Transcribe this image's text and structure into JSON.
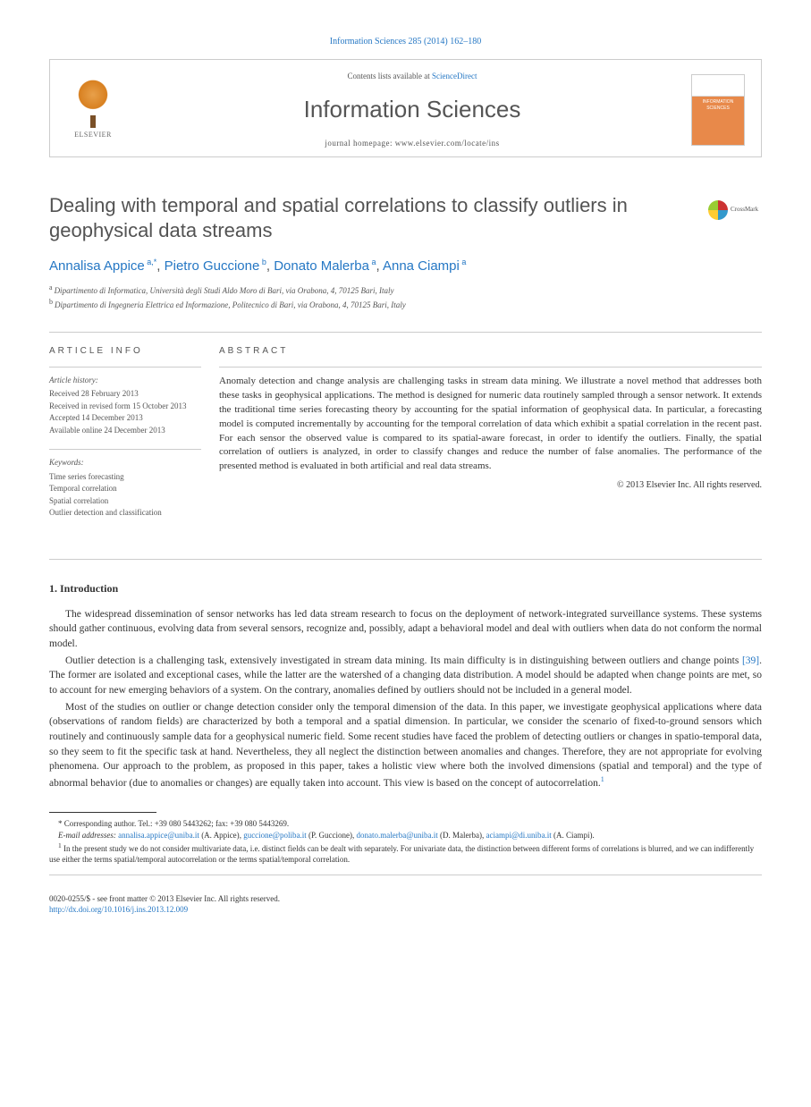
{
  "citation": "Information Sciences 285 (2014) 162–180",
  "header": {
    "contents_prefix": "Contents lists available at ",
    "contents_link": "ScienceDirect",
    "journal": "Information Sciences",
    "homepage_prefix": "journal homepage: ",
    "homepage_url": "www.elsevier.com/locate/ins",
    "publisher": "ELSEVIER",
    "cover_title": "INFORMATION SCIENCES"
  },
  "crossmark": "CrossMark",
  "title": "Dealing with temporal and spatial correlations to classify outliers in geophysical data streams",
  "authors": [
    {
      "name": "Annalisa Appice",
      "affil": "a,",
      "corr": "*"
    },
    {
      "name": "Pietro Guccione",
      "affil": "b",
      "corr": ""
    },
    {
      "name": "Donato Malerba",
      "affil": "a",
      "corr": ""
    },
    {
      "name": "Anna Ciampi",
      "affil": "a",
      "corr": ""
    }
  ],
  "affiliations": [
    {
      "marker": "a",
      "text": "Dipartimento di Informatica, Università degli Studi Aldo Moro di Bari, via Orabona, 4, 70125 Bari, Italy"
    },
    {
      "marker": "b",
      "text": "Dipartimento di Ingegneria Elettrica ed Informazione, Politecnico di Bari, via Orabona, 4, 70125 Bari, Italy"
    }
  ],
  "article_info": {
    "heading": "ARTICLE INFO",
    "history_label": "Article history:",
    "history": [
      "Received 28 February 2013",
      "Received in revised form 15 October 2013",
      "Accepted 14 December 2013",
      "Available online 24 December 2013"
    ],
    "keywords_label": "Keywords:",
    "keywords": [
      "Time series forecasting",
      "Temporal correlation",
      "Spatial correlation",
      "Outlier detection and classification"
    ]
  },
  "abstract": {
    "heading": "ABSTRACT",
    "text": "Anomaly detection and change analysis are challenging tasks in stream data mining. We illustrate a novel method that addresses both these tasks in geophysical applications. The method is designed for numeric data routinely sampled through a sensor network. It extends the traditional time series forecasting theory by accounting for the spatial information of geophysical data. In particular, a forecasting model is computed incrementally by accounting for the temporal correlation of data which exhibit a spatial correlation in the recent past. For each sensor the observed value is compared to its spatial-aware forecast, in order to identify the outliers. Finally, the spatial correlation of outliers is analyzed, in order to classify changes and reduce the number of false anomalies. The performance of the presented method is evaluated in both artificial and real data streams.",
    "copyright": "© 2013 Elsevier Inc. All rights reserved."
  },
  "intro": {
    "heading": "1. Introduction",
    "paragraphs": [
      "The widespread dissemination of sensor networks has led data stream research to focus on the deployment of network-integrated surveillance systems. These systems should gather continuous, evolving data from several sensors, recognize and, possibly, adapt a behavioral model and deal with outliers when data do not conform the normal model.",
      "Outlier detection is a challenging task, extensively investigated in stream data mining. Its main difficulty is in distinguishing between outliers and change points [39]. The former are isolated and exceptional cases, while the latter are the watershed of a changing data distribution. A model should be adapted when change points are met, so to account for new emerging behaviors of a system. On the contrary, anomalies defined by outliers should not be included in a general model.",
      "Most of the studies on outlier or change detection consider only the temporal dimension of the data. In this paper, we investigate geophysical applications where data (observations of random fields) are characterized by both a temporal and a spatial dimension. In particular, we consider the scenario of fixed-to-ground sensors which routinely and continuously sample data for a geophysical numeric field. Some recent studies have faced the problem of detecting outliers or changes in spatio-temporal data, so they seem to fit the specific task at hand. Nevertheless, they all neglect the distinction between anomalies and changes. Therefore, they are not appropriate for evolving phenomena. Our approach to the problem, as proposed in this paper, takes a holistic view where both the involved dimensions (spatial and temporal) and the type of abnormal behavior (due to anomalies or changes) are equally taken into account. This view is based on the concept of autocorrelation.1"
    ],
    "ref39": "[39]"
  },
  "footnotes": {
    "corresponding": "* Corresponding author. Tel.: +39 080 5443262; fax: +39 080 5443269.",
    "emails_label": "E-mail addresses: ",
    "emails": [
      {
        "addr": "annalisa.appice@uniba.it",
        "who": "(A. Appice)"
      },
      {
        "addr": "guccione@poliba.it",
        "who": "(P. Guccione)"
      },
      {
        "addr": "donato.malerba@uniba.it",
        "who": "(D. Malerba)"
      },
      {
        "addr": "aciampi@di.uniba.it",
        "who": "(A. Ciampi)"
      }
    ],
    "note1_marker": "1",
    "note1": "In the present study we do not consider multivariate data, i.e. distinct fields can be dealt with separately. For univariate data, the distinction between different forms of correlations is blurred, and we can indifferently use either the terms spatial/temporal autocorrelation or the terms spatial/temporal correlation."
  },
  "footer": {
    "issn": "0020-0255/$ - see front matter © 2013 Elsevier Inc. All rights reserved.",
    "doi": "http://dx.doi.org/10.1016/j.ins.2013.12.009"
  },
  "colors": {
    "link": "#2577c4",
    "text": "#333333",
    "heading_gray": "#535353",
    "cover_orange": "#e8894a"
  }
}
